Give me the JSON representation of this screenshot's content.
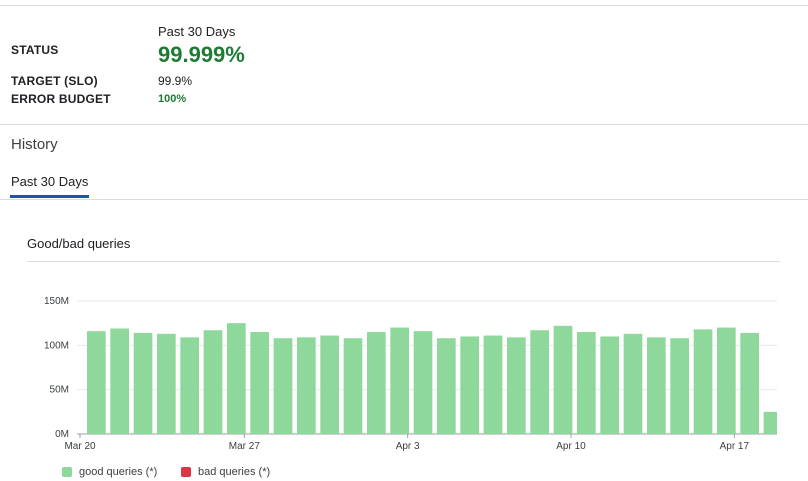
{
  "summary": {
    "period_label": "Past 30 Days",
    "status_label": "STATUS",
    "status_value": "99.999%",
    "target_label": "TARGET (SLO)",
    "target_value": "99.9%",
    "budget_label": "ERROR BUDGET",
    "budget_value": "100%"
  },
  "history": {
    "title": "History",
    "tabs": [
      {
        "label": "Past 30 Days",
        "selected": true
      }
    ]
  },
  "colors": {
    "status_good": "#1e7b34",
    "good_queries": "#8dd89a",
    "bad_queries": "#dc3545",
    "tab_accent": "#1a56a8"
  },
  "chart_data": {
    "type": "bar",
    "title": "Good/bad queries",
    "xlabel": "",
    "ylabel": "",
    "ylim": [
      0,
      150
    ],
    "y_unit": "M",
    "y_ticks": [
      "0M",
      "50M",
      "100M",
      "150M"
    ],
    "x_tick_labels": [
      "Mar 20",
      "Mar 27",
      "Apr 3",
      "Apr 10",
      "Apr 17"
    ],
    "categories": [
      "Mar 20",
      "Mar 21",
      "Mar 22",
      "Mar 23",
      "Mar 24",
      "Mar 25",
      "Mar 26",
      "Mar 27",
      "Mar 28",
      "Mar 29",
      "Mar 30",
      "Mar 31",
      "Apr 1",
      "Apr 2",
      "Apr 3",
      "Apr 4",
      "Apr 5",
      "Apr 6",
      "Apr 7",
      "Apr 8",
      "Apr 9",
      "Apr 10",
      "Apr 11",
      "Apr 12",
      "Apr 13",
      "Apr 14",
      "Apr 15",
      "Apr 16",
      "Apr 17",
      "Apr 18"
    ],
    "series": [
      {
        "name": "good queries (*)",
        "color": "#8dd89a",
        "values": [
          116,
          119,
          114,
          113,
          109,
          117,
          125,
          115,
          108,
          109,
          111,
          108,
          115,
          120,
          116,
          108,
          110,
          111,
          109,
          117,
          122,
          115,
          110,
          113,
          109,
          108,
          118,
          120,
          114,
          25
        ]
      },
      {
        "name": "bad queries (*)",
        "color": "#dc3545",
        "values": [
          0,
          0,
          0,
          0,
          0,
          0,
          0,
          0,
          0,
          0,
          0,
          0,
          0,
          0,
          0,
          0,
          0,
          0,
          0,
          0,
          0,
          0,
          0,
          0,
          0,
          0,
          0,
          0,
          0,
          0
        ]
      }
    ],
    "grid": true,
    "legend_position": "bottom-left"
  }
}
